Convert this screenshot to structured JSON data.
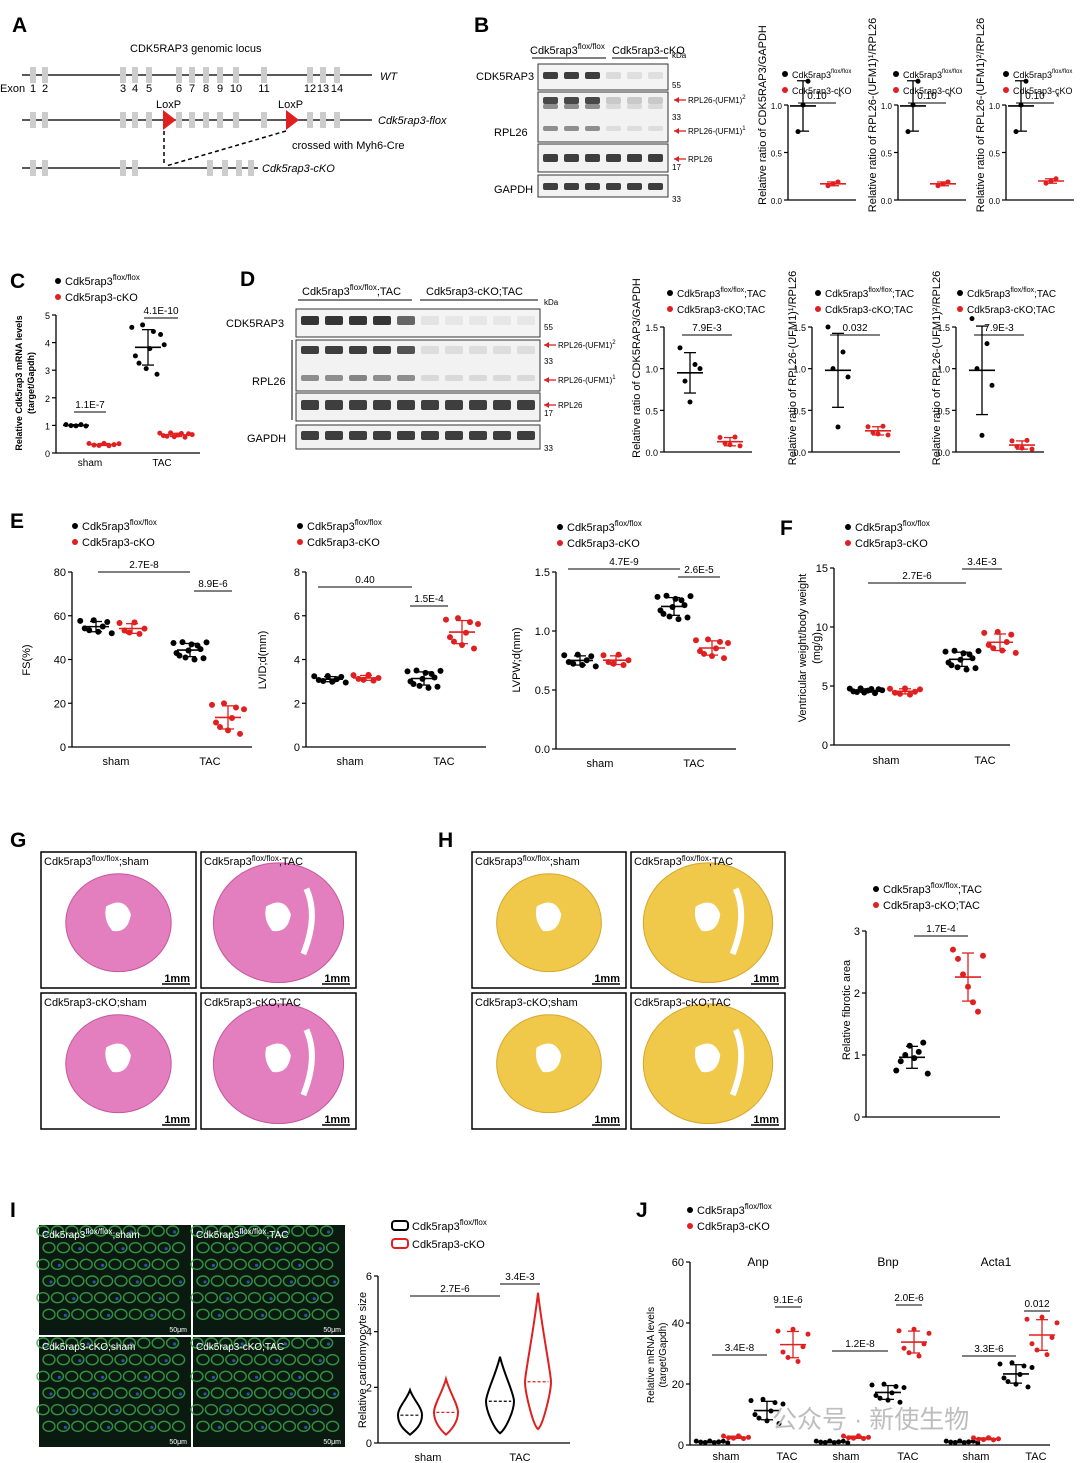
{
  "colors": {
    "flox": "#000000",
    "cko": "#e02020",
    "band": "#2a2a2a",
    "gene_box": "#cccccc",
    "he": "#e37fbf",
    "sirius": "#f0c84a",
    "wga": "#39a84a",
    "nuclei": "#2d4fa8",
    "watermark": "#bdbdbd"
  },
  "panels": [
    "A",
    "B",
    "C",
    "D",
    "E",
    "F",
    "G",
    "H",
    "I",
    "J"
  ],
  "panelA": {
    "title": "CDK5RAP3 genomic locus",
    "exon_label": "Exon",
    "exon_nums": [
      "1",
      "2",
      "3",
      "4",
      "5",
      "6",
      "7",
      "8",
      "9",
      "10",
      "11",
      "12",
      "13",
      "14"
    ],
    "wt": "WT",
    "flox": "Cdk5rap3-flox",
    "cko": "Cdk5rap3-cKO",
    "loxp1": "LoxP",
    "loxp2": "LoxP",
    "cross": "crossed with Myh6-Cre"
  },
  "panelB": {
    "group1": "Cdk5rap3",
    "group1_sup": "flox/flox",
    "group2": "Cdk5rap3-cKO",
    "kda": "kDa",
    "rows": [
      "CDK5RAP3",
      "RPL26",
      "GAPDH"
    ],
    "mw": [
      "55",
      "33",
      "17",
      "33"
    ],
    "arrows": [
      "RPL26-(UFM1)",
      "RPL26-(UFM1)",
      "RPL26"
    ],
    "arrow_sup": [
      "2",
      "1",
      ""
    ],
    "ylabels": [
      "Relative ratio of CDK5RAP3/GAPDH",
      "Relative ratio of RPL26-(UFM1)¹/RPL26",
      "Relative ratio of RPL26-(UFM1)²/RPL26"
    ],
    "legend": [
      "Cdk5rap3",
      "Cdk5rap3-cKO"
    ],
    "legend_sup": "flox/flox",
    "pvals": [
      "0.10",
      "0.10",
      "0.10"
    ],
    "star": "*",
    "ticks": [
      "0.0",
      "0.5",
      "1.0"
    ]
  },
  "panelC": {
    "ylabel1": "Relative Cdk5rap3 mRNA levels",
    "ylabel2": "(target/Gapdh)",
    "legend": [
      "Cdk5rap3",
      "Cdk5rap3-cKO"
    ],
    "legend_sup": "flox/flox",
    "x": [
      "sham",
      "TAC"
    ],
    "pvals": [
      "1.1E-7",
      "4.1E-10"
    ],
    "ticks": [
      "0",
      "1",
      "2",
      "3",
      "4",
      "5"
    ]
  },
  "panelD": {
    "group1": "Cdk5rap3",
    "group1_sup": "flox/flox",
    "group1_suffix": ";TAC",
    "group2": "Cdk5rap3-cKO;TAC",
    "kda": "kDa",
    "rows": [
      "CDK5RAP3",
      "RPL26",
      "GAPDH"
    ],
    "mw": [
      "55",
      "33",
      "17",
      "33"
    ],
    "arrows": [
      "RPL26-(UFM1)",
      "RPL26-(UFM1)",
      "RPL26"
    ],
    "arrow_sup": [
      "2",
      "1",
      ""
    ],
    "ylabels": [
      "Relative ratio of CDK5RAP3/GAPDH",
      "Relative ratio of RPL26-(UFM1)¹/RPL26",
      "Relative ratio of RPL26-(UFM1)²/RPL26"
    ],
    "legend": [
      "Cdk5rap3",
      "Cdk5rap3-cKO;TAC"
    ],
    "legend_sup": "flox/flox",
    "legend_suffix": ";TAC",
    "pvals": [
      "7.9E-3",
      "0.032",
      "7.9E-3"
    ],
    "ticks": [
      "0.0",
      "0.5",
      "1.0",
      "1.5"
    ]
  },
  "panelE": {
    "legend": [
      "Cdk5rap3",
      "Cdk5rap3-cKO"
    ],
    "legend_sup": "flox/flox",
    "x": [
      "sham",
      "TAC"
    ],
    "plots": [
      {
        "ylabel": "FS(%)",
        "ticks": [
          "0",
          "20",
          "40",
          "60",
          "80"
        ],
        "pvals": [
          "2.7E-8",
          "8.9E-6"
        ]
      },
      {
        "ylabel": "LVID;d(mm)",
        "ticks": [
          "0",
          "2",
          "4",
          "6",
          "8"
        ],
        "pvals": [
          "0.40",
          "1.5E-4"
        ]
      },
      {
        "ylabel": "LVPW;d(mm)",
        "ticks": [
          "0.0",
          "0.5",
          "1.0",
          "1.5"
        ],
        "pvals": [
          "4.7E-9",
          "2.6E-5"
        ]
      }
    ]
  },
  "panelF": {
    "ylabel1": "Ventricular weight/body weight",
    "ylabel2": "(mg/g)",
    "legend": [
      "Cdk5rap3",
      "Cdk5rap3-cKO"
    ],
    "legend_sup": "flox/flox",
    "x": [
      "sham",
      "TAC"
    ],
    "ticks": [
      "0",
      "5",
      "10",
      "15"
    ],
    "pvals": [
      "2.7E-6",
      "3.4E-3"
    ]
  },
  "panelG": {
    "labels": [
      "Cdk5rap3",
      "Cdk5rap3",
      "Cdk5rap3-cKO;sham",
      "Cdk5rap3-cKO;TAC"
    ],
    "sups": [
      "flox/flox",
      "flox/flox"
    ],
    "suffix": [
      ";sham",
      ";TAC"
    ],
    "scale": "1mm"
  },
  "panelH": {
    "labels": [
      "Cdk5rap3",
      "Cdk5rap3",
      "Cdk5rap3-cKO;sham",
      "Cdk5rap3-cKO;TAC"
    ],
    "sups": [
      "flox/flox",
      "flox/flox"
    ],
    "suffix": [
      ";sham",
      ";TAC"
    ],
    "scale": "1mm",
    "ylabel": "Relative fibrotic area",
    "legend": [
      "Cdk5rap3",
      "Cdk5rap3-cKO;TAC"
    ],
    "legend_sup": "flox/flox",
    "legend_suffix": ";TAC",
    "pval": "1.7E-4",
    "ticks": [
      "0",
      "1",
      "2",
      "3"
    ]
  },
  "panelI": {
    "labels": [
      "Cdk5rap3",
      "Cdk5rap3",
      "Cdk5rap3-cKO;sham",
      "Cdk5rap3-cKO;TAC"
    ],
    "sups": [
      "flox/flox",
      "flox/flox"
    ],
    "suffix": [
      ";sham",
      ";TAC"
    ],
    "scale": "50μm",
    "ylabel": "Relative cardiomyocyte size",
    "legend": [
      "Cdk5rap3",
      "Cdk5rap3-cKO"
    ],
    "legend_sup": "flox/flox",
    "x": [
      "sham",
      "TAC"
    ],
    "ticks": [
      "0",
      "2",
      "4",
      "6"
    ],
    "pvals": [
      "2.7E-6",
      "3.4E-3"
    ]
  },
  "panelJ": {
    "ylabel1": "Relative mRNA levels",
    "ylabel2": "(target/Gapdh)",
    "legend": [
      "Cdk5rap3",
      "Cdk5rap3-cKO"
    ],
    "legend_sup": "flox/flox",
    "genes": [
      "Anp",
      "Bnp",
      "Acta1"
    ],
    "x": [
      "sham",
      "TAC"
    ],
    "ticks": [
      "0",
      "20",
      "40",
      "60"
    ],
    "pvals": [
      [
        "3.4E-8",
        "9.1E-6"
      ],
      [
        "1.2E-8",
        "2.0E-6"
      ],
      [
        "3.3E-6",
        "0.012"
      ]
    ]
  },
  "watermark": "公众号 · 新使生物",
  "chart_data": [
    {
      "panel": "B",
      "type": "scatter",
      "ylabel": "Relative ratio of CDK5RAP3/GAPDH",
      "categories": [
        "Cdk5rap3flox/flox",
        "Cdk5rap3-cKO"
      ],
      "means": [
        1.0,
        0.17
      ],
      "p": "0.10"
    },
    {
      "panel": "B",
      "type": "scatter",
      "ylabel": "Relative ratio of RPL26-(UFM1)¹/RPL26",
      "categories": [
        "Cdk5rap3flox/flox",
        "Cdk5rap3-cKO"
      ],
      "means": [
        1.0,
        0.17
      ],
      "p": "0.10"
    },
    {
      "panel": "B",
      "type": "scatter",
      "ylabel": "Relative ratio of RPL26-(UFM1)²/RPL26",
      "categories": [
        "Cdk5rap3flox/flox",
        "Cdk5rap3-cKO"
      ],
      "means": [
        1.0,
        0.2
      ],
      "p": "0.10"
    },
    {
      "panel": "C",
      "type": "scatter",
      "ylabel": "Relative Cdk5rap3 mRNA levels (target/Gapdh)",
      "categories": [
        "sham",
        "TAC"
      ],
      "series": [
        {
          "name": "Cdk5rap3flox/flox",
          "means": [
            1.0,
            3.75
          ]
        },
        {
          "name": "Cdk5rap3-cKO",
          "means": [
            0.3,
            0.65
          ]
        }
      ],
      "ylim": [
        0,
        5
      ]
    },
    {
      "panel": "D",
      "type": "scatter",
      "ylabel": "Relative ratio of CDK5RAP3/GAPDH",
      "means": [
        1.0,
        0.12
      ],
      "p": "7.9E-3",
      "ylim": [
        0,
        1.5
      ]
    },
    {
      "panel": "D",
      "type": "scatter",
      "ylabel": "Relative ratio of RPL26-(UFM1)¹/RPL26",
      "means": [
        1.0,
        0.25
      ],
      "p": "0.032",
      "ylim": [
        0,
        1.5
      ]
    },
    {
      "panel": "D",
      "type": "scatter",
      "ylabel": "Relative ratio of RPL26-(UFM1)²/RPL26",
      "means": [
        1.0,
        0.08
      ],
      "p": "7.9E-3",
      "ylim": [
        0,
        1.5
      ]
    },
    {
      "panel": "E",
      "type": "scatter",
      "ylabel": "FS(%)",
      "categories": [
        "sham",
        "TAC"
      ],
      "series": [
        {
          "name": "Cdk5rap3flox/flox",
          "means": [
            55,
            44
          ]
        },
        {
          "name": "Cdk5rap3-cKO",
          "means": [
            54,
            13
          ]
        }
      ],
      "ylim": [
        0,
        80
      ]
    },
    {
      "panel": "E",
      "type": "scatter",
      "ylabel": "LVID;d(mm)",
      "categories": [
        "sham",
        "TAC"
      ],
      "series": [
        {
          "name": "Cdk5rap3flox/flox",
          "means": [
            3.1,
            3.1
          ]
        },
        {
          "name": "Cdk5rap3-cKO",
          "means": [
            3.15,
            5.2
          ]
        }
      ],
      "ylim": [
        0,
        8
      ]
    },
    {
      "panel": "E",
      "type": "scatter",
      "ylabel": "LVPW;d(mm)",
      "categories": [
        "sham",
        "TAC"
      ],
      "series": [
        {
          "name": "Cdk5rap3flox/flox",
          "means": [
            0.75,
            1.2
          ]
        },
        {
          "name": "Cdk5rap3-cKO",
          "means": [
            0.75,
            0.85
          ]
        }
      ],
      "ylim": [
        0,
        1.5
      ]
    },
    {
      "panel": "F",
      "type": "scatter",
      "ylabel": "Ventricular weight/body weight (mg/g)",
      "categories": [
        "sham",
        "TAC"
      ],
      "series": [
        {
          "name": "Cdk5rap3flox/flox",
          "means": [
            4.6,
            7.2
          ]
        },
        {
          "name": "Cdk5rap3-cKO",
          "means": [
            4.5,
            8.7
          ]
        }
      ],
      "ylim": [
        0,
        15
      ]
    },
    {
      "panel": "H",
      "type": "scatter",
      "ylabel": "Relative fibrotic area",
      "categories": [
        "Cdk5rap3flox/flox;TAC",
        "Cdk5rap3-cKO;TAC"
      ],
      "means": [
        1.0,
        2.25
      ],
      "p": "1.7E-4",
      "ylim": [
        0,
        3
      ]
    },
    {
      "panel": "I",
      "type": "violin",
      "ylabel": "Relative cardiomyocyte size",
      "categories": [
        "sham",
        "TAC"
      ],
      "series": [
        {
          "name": "Cdk5rap3flox/flox",
          "medians": [
            1.0,
            1.5
          ]
        },
        {
          "name": "Cdk5rap3-cKO",
          "medians": [
            1.1,
            2.2
          ]
        }
      ],
      "ylim": [
        0,
        6
      ]
    },
    {
      "panel": "J",
      "type": "scatter",
      "ylabel": "Relative mRNA levels (target/Gapdh)",
      "genes": [
        "Anp",
        "Bnp",
        "Acta1"
      ],
      "categories": [
        "sham",
        "TAC"
      ],
      "series": [
        {
          "name": "Cdk5rap3flox/flox",
          "means": [
            [
              1,
              11
            ],
            [
              1,
              17
            ],
            [
              1,
              23
            ]
          ]
        },
        {
          "name": "Cdk5rap3-cKO",
          "means": [
            [
              2.5,
              32
            ],
            [
              2.5,
              33
            ],
            [
              2,
              35
            ]
          ]
        }
      ],
      "ylim": [
        0,
        60
      ]
    }
  ]
}
